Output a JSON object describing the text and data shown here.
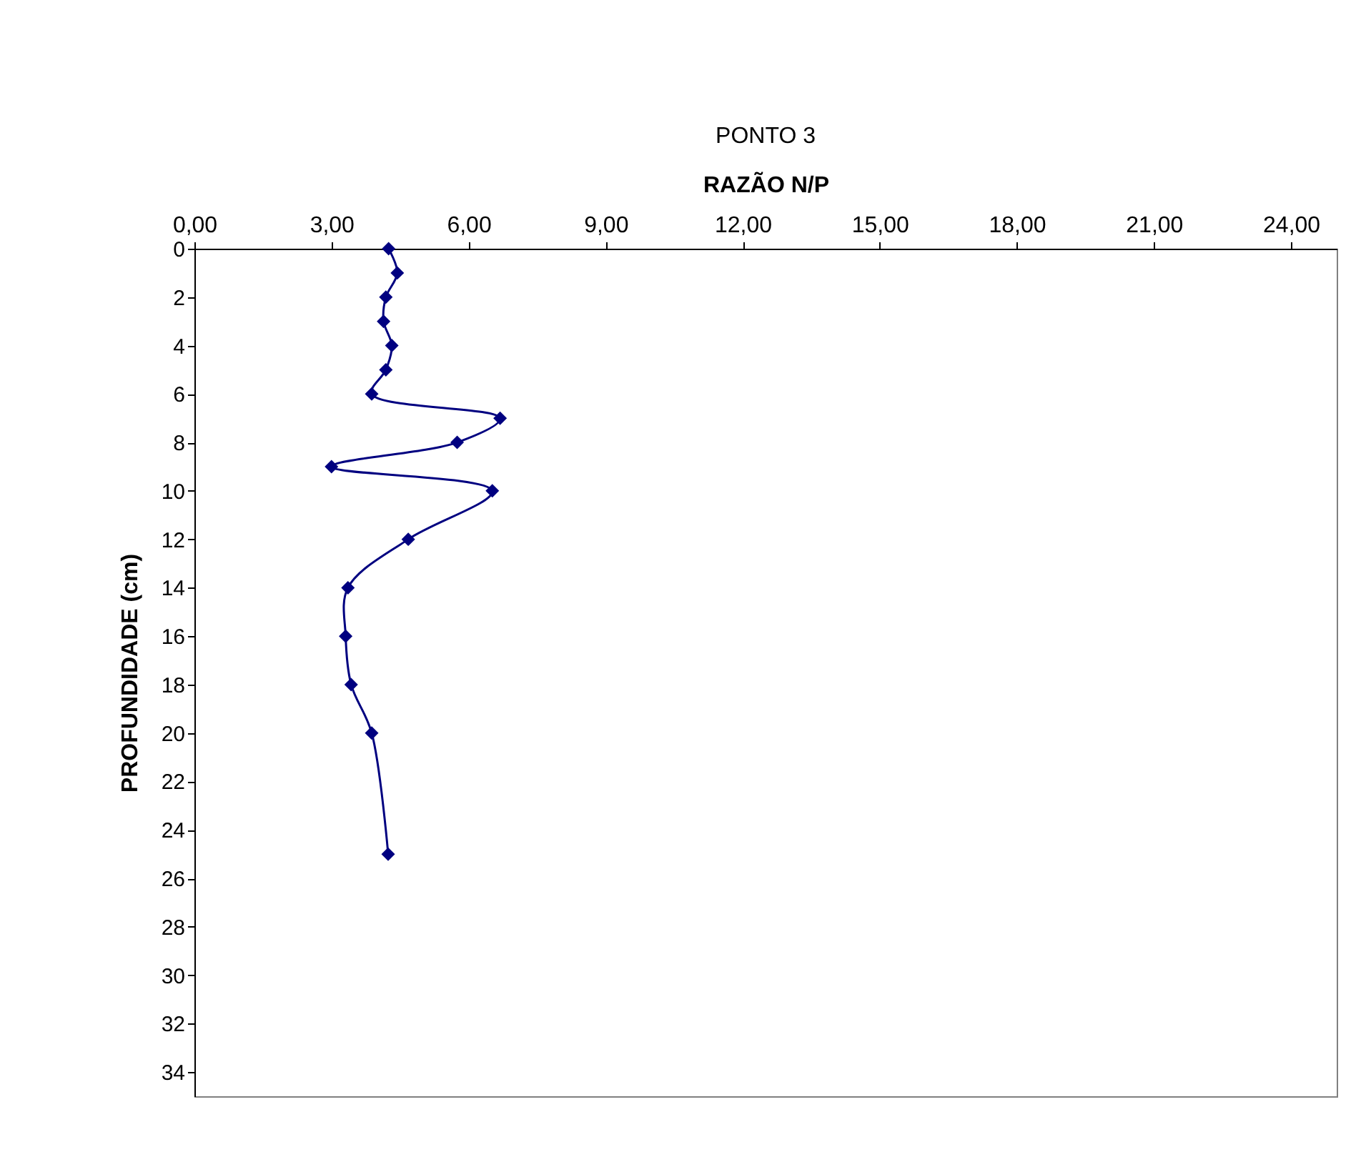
{
  "chart_data": {
    "type": "line",
    "title": "PONTO 3",
    "xlabel": "RAZÃO N/P",
    "ylabel": "PROFUNDIDADE (cm)",
    "xlim": [
      0,
      25
    ],
    "xticks": [
      {
        "value": 0,
        "label": "0,00"
      },
      {
        "value": 3,
        "label": "3,00"
      },
      {
        "value": 6,
        "label": "6,00"
      },
      {
        "value": 9,
        "label": "9,00"
      },
      {
        "value": 12,
        "label": "12,00"
      },
      {
        "value": 15,
        "label": "15,00"
      },
      {
        "value": 18,
        "label": "18,00"
      },
      {
        "value": 21,
        "label": "21,00"
      },
      {
        "value": 24,
        "label": "24,00"
      }
    ],
    "ylim": [
      35,
      0
    ],
    "yticks": [
      0,
      2,
      4,
      6,
      8,
      10,
      12,
      14,
      16,
      18,
      20,
      22,
      24,
      26,
      28,
      30,
      32,
      34
    ],
    "marker": "diamond",
    "series": [
      {
        "color": "#000080",
        "x": [
          4.25,
          4.44,
          4.19,
          4.14,
          4.32,
          4.19,
          3.88,
          6.69,
          5.75,
          3.0,
          6.52,
          4.68,
          3.36,
          3.31,
          3.43,
          3.88,
          4.24
        ],
        "values": [
          0,
          1,
          2,
          3,
          4,
          5,
          6,
          7,
          8,
          9,
          10,
          12,
          14,
          16,
          18,
          20,
          25
        ]
      }
    ]
  }
}
